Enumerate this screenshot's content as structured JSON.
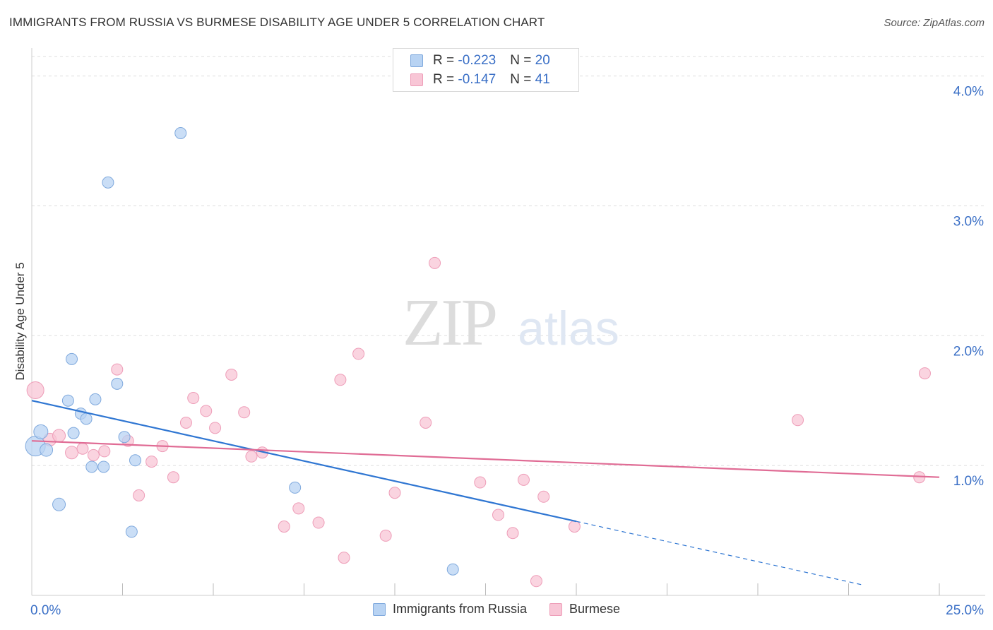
{
  "title": "IMMIGRANTS FROM RUSSIA VS BURMESE DISABILITY AGE UNDER 5 CORRELATION CHART",
  "source": "Source: ZipAtlas.com",
  "watermark": {
    "zip": "ZIP",
    "atlas": "atlas"
  },
  "colors": {
    "russia_fill": "#b8d3f3",
    "russia_stroke": "#7fa9dd",
    "russia_line": "#2f76d2",
    "burmese_fill": "#f8c6d6",
    "burmese_stroke": "#ee9db8",
    "burmese_line": "#e06c95",
    "axis_text": "#3a6fc6"
  },
  "stats": {
    "russia": {
      "r_label": "R = ",
      "r_value": "-0.223",
      "n_label": "N = ",
      "n_value": "20"
    },
    "burmese": {
      "r_label": "R = ",
      "r_value": "-0.147",
      "n_label": "N = ",
      "n_value": "41"
    }
  },
  "chart_data": {
    "type": "scatter",
    "title": "IMMIGRANTS FROM RUSSIA VS BURMESE DISABILITY AGE UNDER 5 CORRELATION CHART",
    "xlabel": "",
    "ylabel": "Disability Age Under 5",
    "xlim": [
      0,
      25
    ],
    "ylim": [
      0,
      4.15
    ],
    "x_tick_labels": [
      {
        "value": 0,
        "label": "0.0%"
      },
      {
        "value": 25,
        "label": "25.0%"
      }
    ],
    "y_tick_labels": [
      {
        "value": 1,
        "label": "1.0%"
      },
      {
        "value": 2,
        "label": "2.0%"
      },
      {
        "value": 3,
        "label": "3.0%"
      },
      {
        "value": 4,
        "label": "4.0%"
      }
    ],
    "grid": true,
    "legend": "bottom",
    "series": [
      {
        "name": "Immigrants from Russia",
        "points": [
          [
            0.1,
            1.15,
            14
          ],
          [
            0.25,
            1.26,
            10
          ],
          [
            0.4,
            1.12,
            9
          ],
          [
            0.75,
            0.7,
            9
          ],
          [
            1.0,
            1.5,
            8
          ],
          [
            1.1,
            1.82,
            8
          ],
          [
            1.15,
            1.25,
            8
          ],
          [
            1.35,
            1.4,
            8
          ],
          [
            1.5,
            1.36,
            8
          ],
          [
            1.65,
            0.99,
            8
          ],
          [
            1.75,
            1.51,
            8
          ],
          [
            1.98,
            0.99,
            8
          ],
          [
            2.1,
            3.18,
            8
          ],
          [
            2.35,
            1.63,
            8
          ],
          [
            2.55,
            1.22,
            8
          ],
          [
            2.75,
            0.49,
            8
          ],
          [
            2.85,
            1.04,
            8
          ],
          [
            4.1,
            3.56,
            8
          ],
          [
            7.25,
            0.83,
            8
          ],
          [
            11.6,
            0.2,
            8
          ]
        ],
        "trend": {
          "x0": 0,
          "y0": 1.5,
          "x1": 15.0,
          "y1": 0.57,
          "dash_to_x": 22.9,
          "dash_to_y": 0.08
        }
      },
      {
        "name": "Burmese",
        "points": [
          [
            0.1,
            1.58,
            12
          ],
          [
            0.5,
            1.2,
            9
          ],
          [
            0.75,
            1.23,
            9
          ],
          [
            1.1,
            1.1,
            9
          ],
          [
            1.4,
            1.13,
            8
          ],
          [
            1.7,
            1.08,
            8
          ],
          [
            2.0,
            1.11,
            8
          ],
          [
            2.35,
            1.74,
            8
          ],
          [
            2.65,
            1.19,
            8
          ],
          [
            2.95,
            0.77,
            8
          ],
          [
            3.3,
            1.03,
            8
          ],
          [
            3.6,
            1.15,
            8
          ],
          [
            3.9,
            0.91,
            8
          ],
          [
            4.25,
            1.33,
            8
          ],
          [
            4.45,
            1.52,
            8
          ],
          [
            4.8,
            1.42,
            8
          ],
          [
            5.05,
            1.29,
            8
          ],
          [
            5.5,
            1.7,
            8
          ],
          [
            5.85,
            1.41,
            8
          ],
          [
            6.05,
            1.07,
            8
          ],
          [
            6.35,
            1.1,
            8
          ],
          [
            6.95,
            0.53,
            8
          ],
          [
            7.35,
            0.67,
            8
          ],
          [
            7.9,
            0.56,
            8
          ],
          [
            8.5,
            1.66,
            8
          ],
          [
            8.6,
            0.29,
            8
          ],
          [
            9.0,
            1.86,
            8
          ],
          [
            9.75,
            0.46,
            8
          ],
          [
            10.0,
            0.79,
            8
          ],
          [
            11.1,
            2.56,
            8
          ],
          [
            10.85,
            1.33,
            8
          ],
          [
            12.35,
            0.87,
            8
          ],
          [
            12.85,
            0.62,
            8
          ],
          [
            13.25,
            0.48,
            8
          ],
          [
            13.55,
            0.89,
            8
          ],
          [
            13.9,
            0.11,
            8
          ],
          [
            14.1,
            0.76,
            8
          ],
          [
            14.95,
            0.53,
            8
          ],
          [
            21.1,
            1.35,
            8
          ],
          [
            24.45,
            0.91,
            8
          ],
          [
            24.6,
            1.71,
            8
          ]
        ],
        "trend": {
          "x0": 0,
          "y0": 1.19,
          "x1": 25.0,
          "y1": 0.91
        }
      }
    ]
  }
}
